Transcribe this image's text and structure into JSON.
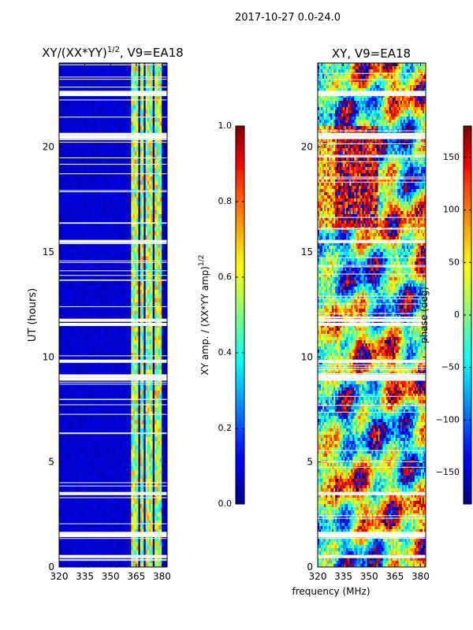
{
  "suptitle": "2017-10-27 0.0-24.0",
  "shared_xlabel": "frequency (MHz)",
  "colors": {
    "frame": "#000000",
    "gap": "#ffffff"
  },
  "chart_data": [
    {
      "type": "heatmap",
      "title_main": "XY/(XX*YY)",
      "title_exp": "1/2",
      "title_suffix": ", V9=EA18",
      "ylabel": "UT (hours)",
      "x_ticks": [
        320,
        335,
        350,
        365,
        380
      ],
      "x_tick_labels": [
        "320",
        "335",
        "350",
        "365",
        "380"
      ],
      "xlim": [
        320,
        383
      ],
      "y_ticks": [
        0,
        5,
        10,
        15,
        20
      ],
      "y_tick_labels": [
        "0",
        "5",
        "10",
        "15",
        "20"
      ],
      "ylim": [
        0,
        24
      ],
      "colormap": "jet",
      "value_range": [
        0.0,
        1.0
      ],
      "background_value": 0.08,
      "bright_bands_mhz": [
        [
          362,
          366
        ],
        [
          367,
          369
        ],
        [
          370,
          372
        ],
        [
          373,
          375
        ],
        [
          376,
          380
        ]
      ],
      "bright_band_value_range": [
        0.35,
        0.75
      ],
      "data_gaps_hours": [
        0.5,
        1.5,
        1.6,
        3.5,
        8.95,
        9.1,
        9.8,
        11.55,
        11.75,
        15.5,
        20.45,
        20.6,
        22.5,
        22.6
      ]
    },
    {
      "type": "heatmap",
      "title_main": "XY, V9=EA18",
      "x_ticks": [
        320,
        335,
        350,
        365,
        380
      ],
      "x_tick_labels": [
        "320",
        "335",
        "350",
        "365",
        "380"
      ],
      "xlim": [
        320,
        383
      ],
      "y_ticks": [
        0,
        5,
        10,
        15,
        20
      ],
      "y_tick_labels": [
        "0",
        "5",
        "10",
        "15",
        "20"
      ],
      "ylim": [
        0,
        24
      ],
      "colormap": "jet",
      "value_range": [
        -180,
        180
      ],
      "data_gaps_hours": [
        0.5,
        1.5,
        1.6,
        3.5,
        8.95,
        9.1,
        9.8,
        11.55,
        11.75,
        15.5,
        20.45,
        20.6,
        22.5,
        22.6
      ]
    }
  ],
  "colorbars": [
    {
      "label_main": "XY amp. / (XX*YY amp)",
      "label_exp": "1/2",
      "ticks": [
        0.0,
        0.2,
        0.4,
        0.6,
        0.8,
        1.0
      ],
      "tick_labels": [
        "0.0",
        "0.2",
        "0.4",
        "0.6",
        "0.8",
        "1.0"
      ],
      "range": [
        0.0,
        1.0
      ],
      "colormap": "jet"
    },
    {
      "label": "phase (deg)",
      "ticks": [
        -150,
        -100,
        -50,
        0,
        50,
        100,
        150
      ],
      "tick_labels": [
        "−150",
        "−100",
        "−50",
        "0",
        "50",
        "100",
        "150"
      ],
      "range": [
        -180,
        180
      ],
      "colormap": "jet"
    }
  ]
}
